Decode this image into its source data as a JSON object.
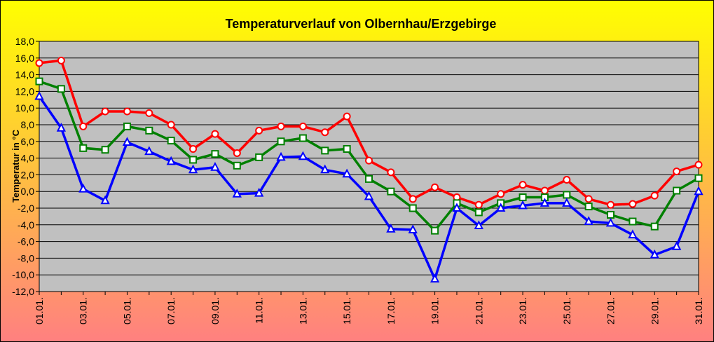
{
  "chart_data": {
    "type": "line",
    "title": "Temperaturverlauf von Olbernhau/Erzgebirge",
    "ylabel": "Temperatur in °C",
    "xlabel": "",
    "ylim": [
      -12,
      18
    ],
    "ytick_step": 2,
    "ytick_labels": [
      "-12,0",
      "-10,0",
      "-8,0",
      "-6,0",
      "-4,0",
      "-2,0",
      "0,0",
      "2,0",
      "4,0",
      "6,0",
      "8,0",
      "10,0",
      "12,0",
      "14,0",
      "16,0",
      "18,0"
    ],
    "grid": true,
    "x": [
      "01.01.",
      "02.01.",
      "03.01.",
      "04.01.",
      "05.01.",
      "06.01.",
      "07.01.",
      "08.01.",
      "09.01.",
      "10.01.",
      "11.01.",
      "12.01.",
      "13.01.",
      "14.01.",
      "15.01.",
      "16.01.",
      "17.01.",
      "18.01.",
      "19.01.",
      "20.01.",
      "21.01.",
      "22.01.",
      "23.01.",
      "24.01.",
      "25.01.",
      "26.01.",
      "27.01.",
      "28.01.",
      "29.01.",
      "30.01.",
      "31.01."
    ],
    "xtick_labels": [
      "01.01.",
      "03.01.",
      "05.01.",
      "07.01.",
      "09.01.",
      "11.01.",
      "13.01.",
      "15.01.",
      "17.01.",
      "19.01.",
      "21.01.",
      "23.01.",
      "25.01.",
      "27.01.",
      "29.01.",
      "31.01."
    ],
    "series": [
      {
        "color": "#ff0000",
        "marker": "circle",
        "values": [
          15.4,
          15.7,
          7.8,
          9.6,
          9.6,
          9.4,
          8.0,
          5.1,
          6.9,
          4.6,
          7.3,
          7.8,
          7.8,
          7.1,
          9.0,
          3.7,
          2.3,
          -0.9,
          0.5,
          -0.7,
          -1.6,
          -0.3,
          0.8,
          0.1,
          1.4,
          -0.9,
          -1.6,
          -1.5,
          -0.5,
          2.4,
          3.2
        ]
      },
      {
        "color": "#008000",
        "marker": "square",
        "values": [
          13.2,
          12.3,
          5.2,
          5.0,
          7.8,
          7.3,
          6.1,
          3.8,
          4.5,
          3.1,
          4.1,
          6.0,
          6.4,
          4.9,
          5.1,
          1.5,
          0.0,
          -2.0,
          -4.7,
          -1.4,
          -2.5,
          -1.4,
          -0.7,
          -0.7,
          -0.4,
          -1.8,
          -2.8,
          -3.6,
          -4.2,
          0.1,
          1.6
        ]
      },
      {
        "color": "#0000ff",
        "marker": "triangle",
        "values": [
          11.4,
          7.6,
          0.3,
          -1.1,
          5.9,
          4.8,
          3.6,
          2.6,
          2.9,
          -0.3,
          -0.2,
          4.1,
          4.2,
          2.6,
          2.1,
          -0.6,
          -4.5,
          -4.6,
          -10.5,
          -2.0,
          -4.1,
          -2.0,
          -1.7,
          -1.4,
          -1.4,
          -3.6,
          -3.8,
          -5.2,
          -7.6,
          -6.6,
          0.0
        ]
      }
    ]
  },
  "colors": {
    "plot_bg": "#c0c0c0",
    "gradient_top": "#ffff00",
    "gradient_bottom": "#ff8080",
    "frame": "#000000"
  }
}
